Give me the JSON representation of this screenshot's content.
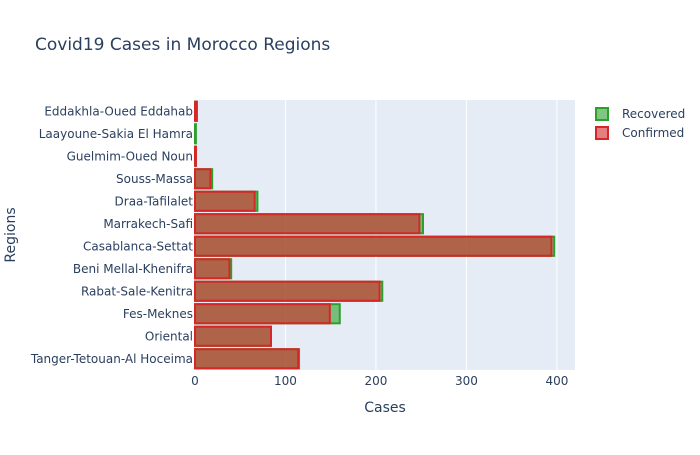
{
  "chart_data": {
    "type": "bar",
    "orientation": "horizontal",
    "barmode": "overlay",
    "title": "Covid19 Cases in Morocco Regions",
    "xlabel": "Cases",
    "ylabel": "Regions",
    "xlim": [
      0,
      420
    ],
    "xticks": [
      0,
      100,
      200,
      300,
      400
    ],
    "grid": true,
    "legend_position": "top-right",
    "categories": [
      "Tanger-Tetouan-Al Hoceima",
      "Oriental",
      "Fes-Meknes",
      "Rabat-Sale-Kenitra",
      "Beni Mellal-Khenifra",
      "Casablanca-Settat",
      "Marrakech-Safi",
      "Draa-Tafilalet",
      "Souss-Massa",
      "Guelmim-Oued Noun",
      "Laayoune-Sakia El Hamra",
      "Eddakhla-Oued Eddahab"
    ],
    "series": [
      {
        "name": "Recovered",
        "color": "#2ca02c",
        "values": [
          115,
          84,
          160,
          207,
          40,
          397,
          252,
          69,
          19,
          1,
          1,
          2
        ]
      },
      {
        "name": "Confirmed",
        "color": "#d62728",
        "values": [
          114,
          84,
          149,
          204,
          38,
          394,
          248,
          66,
          17,
          1,
          0,
          2
        ]
      }
    ]
  }
}
